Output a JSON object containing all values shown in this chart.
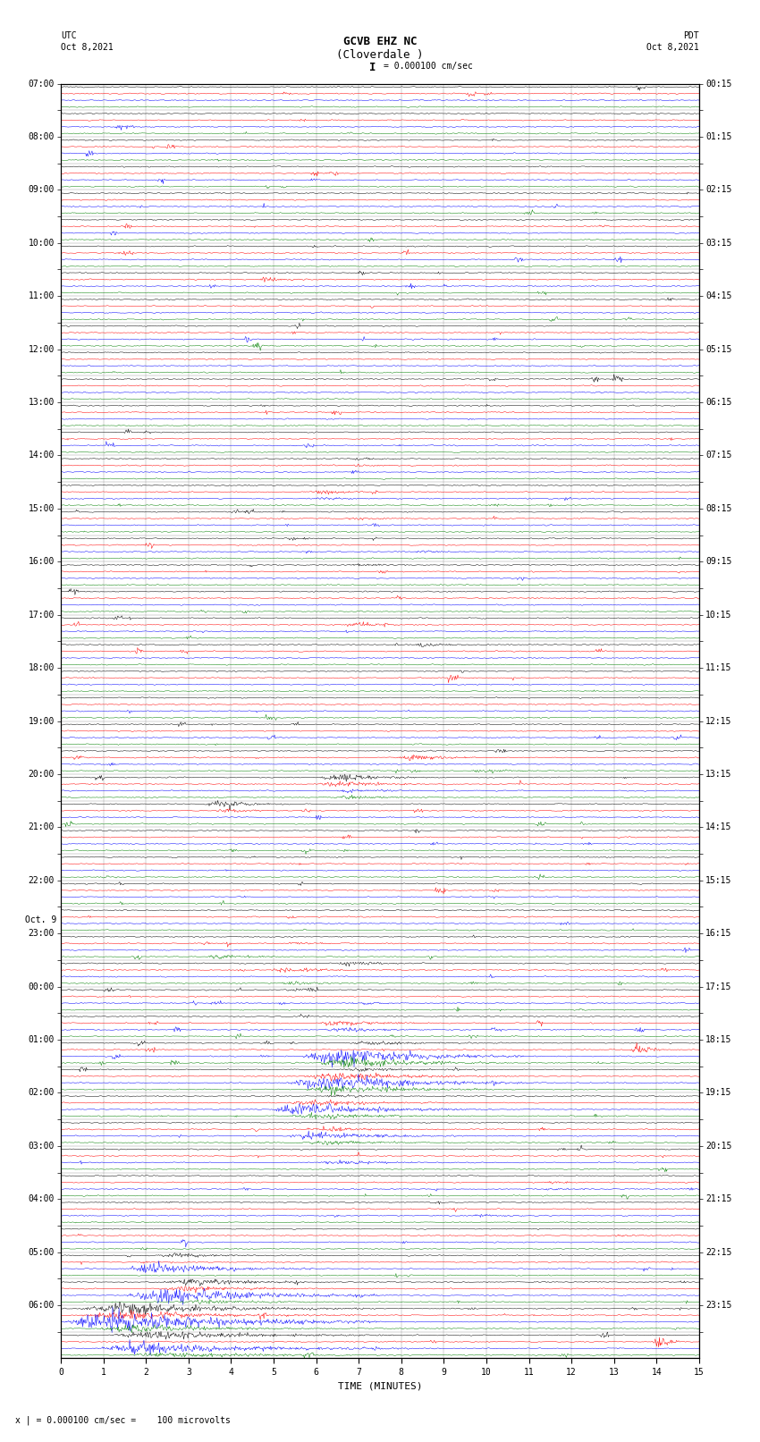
{
  "title_line1": "GCVB EHZ NC",
  "title_line2": "(Cloverdale )",
  "scale_text": "I = 0.000100 cm/sec",
  "left_label_top": "UTC",
  "left_label_date": "Oct 8,2021",
  "right_label_top": "PDT",
  "right_label_date": "Oct 8,2021",
  "bottom_label": "TIME (MINUTES)",
  "footer_text": "x | = 0.000100 cm/sec =    100 microvolts",
  "num_rows": 48,
  "trace_colors": [
    "black",
    "red",
    "blue",
    "green"
  ],
  "background_color": "#ffffff",
  "xmin": 0,
  "xmax": 15,
  "xticks": [
    0,
    1,
    2,
    3,
    4,
    5,
    6,
    7,
    8,
    9,
    10,
    11,
    12,
    13,
    14,
    15
  ],
  "utc_times": [
    "07:00",
    "",
    "08:00",
    "",
    "09:00",
    "",
    "10:00",
    "",
    "11:00",
    "",
    "12:00",
    "",
    "13:00",
    "",
    "14:00",
    "",
    "15:00",
    "",
    "16:00",
    "",
    "17:00",
    "",
    "18:00",
    "",
    "19:00",
    "",
    "20:00",
    "",
    "21:00",
    "",
    "22:00",
    "",
    "23:00",
    "",
    "00:00",
    "",
    "01:00",
    "",
    "02:00",
    "",
    "03:00",
    "",
    "04:00",
    "",
    "05:00",
    "",
    "06:00",
    ""
  ],
  "oct9_row": 32,
  "pdt_times": [
    "00:15",
    "",
    "01:15",
    "",
    "02:15",
    "",
    "03:15",
    "",
    "04:15",
    "",
    "05:15",
    "",
    "06:15",
    "",
    "07:15",
    "",
    "08:15",
    "",
    "09:15",
    "",
    "10:15",
    "",
    "11:15",
    "",
    "12:15",
    "",
    "13:15",
    "",
    "14:15",
    "",
    "15:15",
    "",
    "16:15",
    "",
    "17:15",
    "",
    "18:15",
    "",
    "19:15",
    "",
    "20:15",
    "",
    "21:15",
    "",
    "22:15",
    "",
    "23:15",
    ""
  ],
  "seed": 12345
}
